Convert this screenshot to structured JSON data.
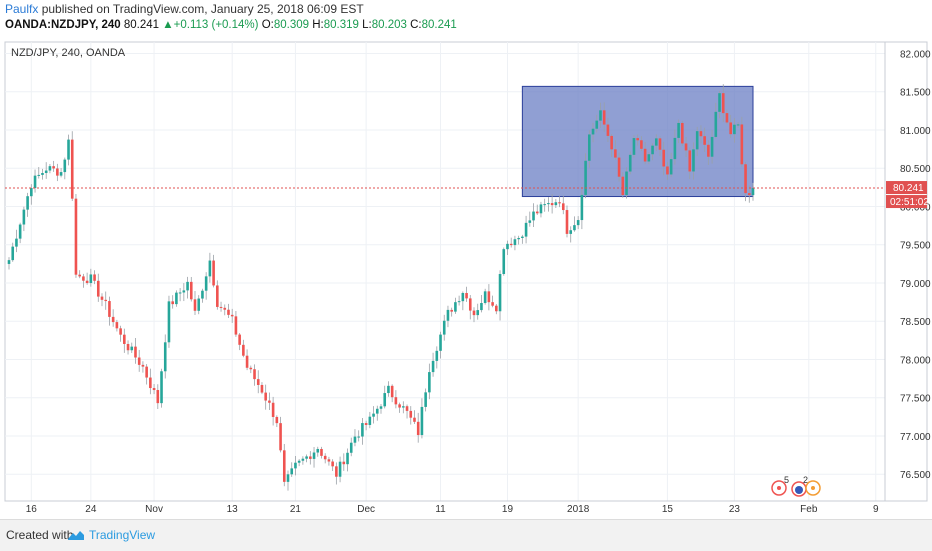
{
  "header": {
    "author": "Paulfx",
    "published": "published on TradingView.com, January 25, 2018 06:09 EST"
  },
  "quote": {
    "symbol": "OANDA:NZDJPY, 240",
    "last": "80.241",
    "change_arrow": "▲",
    "change": "+0.113 (+0.14%)",
    "o_label": "O:",
    "o": "80.309",
    "h_label": "H:",
    "h": "80.319",
    "l_label": "L:",
    "l": "80.203",
    "c_label": "C:",
    "c": "80.241"
  },
  "chart_title": "NZD/JPY, 240, OANDA",
  "price_label": "80.241",
  "countdown_label": "02:51:02",
  "footer": {
    "created_with": "Created with",
    "brand": "TradingView"
  },
  "colors": {
    "up": "#26a69a",
    "down": "#ef5350",
    "box_fill": "#6b7fc4",
    "box_stroke": "#2b3f9a",
    "price_line": "#e05050",
    "grid": "#eef1f5"
  },
  "chart_data": {
    "type": "candlestick",
    "symbol": "NZD/JPY",
    "timeframe": "240",
    "y_ticks": [
      82.0,
      81.5,
      81.0,
      80.5,
      80.0,
      79.5,
      79.0,
      78.5,
      78.0,
      77.5,
      77.0,
      76.5
    ],
    "y_tick_labels": [
      "82.000",
      "81.500",
      "81.000",
      "80.500",
      "80.000",
      "79.500",
      "79.000",
      "78.500",
      "78.000",
      "77.500",
      "77.000",
      "76.500"
    ],
    "ylim": [
      76.15,
      82.15
    ],
    "x_ticks": [
      "16",
      "24",
      "Nov",
      "13",
      "21",
      "Dec",
      "11",
      "19",
      "2018",
      "15",
      "23",
      "Feb",
      "9"
    ],
    "x_tick_index": [
      6,
      22,
      39,
      60,
      77,
      96,
      116,
      134,
      153,
      177,
      195,
      215,
      233
    ],
    "n_bars": 210,
    "price_path": [
      [
        0,
        79.3
      ],
      [
        6,
        80.3
      ],
      [
        10,
        80.5
      ],
      [
        14,
        80.45
      ],
      [
        16,
        80.85
      ],
      [
        17,
        80.15
      ],
      [
        18,
        79.1
      ],
      [
        22,
        79.05
      ],
      [
        26,
        78.7
      ],
      [
        30,
        78.3
      ],
      [
        36,
        77.9
      ],
      [
        40,
        77.45
      ],
      [
        43,
        78.7
      ],
      [
        48,
        79.0
      ],
      [
        50,
        78.6
      ],
      [
        54,
        79.3
      ],
      [
        56,
        78.75
      ],
      [
        60,
        78.5
      ],
      [
        64,
        77.9
      ],
      [
        68,
        77.6
      ],
      [
        72,
        77.2
      ],
      [
        74,
        76.35
      ],
      [
        77,
        76.6
      ],
      [
        83,
        76.85
      ],
      [
        88,
        76.5
      ],
      [
        93,
        77.0
      ],
      [
        97,
        77.2
      ],
      [
        102,
        77.6
      ],
      [
        107,
        77.3
      ],
      [
        110,
        77.05
      ],
      [
        113,
        77.9
      ],
      [
        118,
        78.6
      ],
      [
        122,
        78.9
      ],
      [
        125,
        78.6
      ],
      [
        128,
        78.85
      ],
      [
        131,
        78.7
      ],
      [
        133,
        79.5
      ],
      [
        137,
        79.6
      ],
      [
        141,
        79.9
      ],
      [
        144,
        80.0
      ],
      [
        148,
        80.1
      ],
      [
        150,
        79.7
      ],
      [
        153,
        79.85
      ],
      [
        156,
        80.95
      ],
      [
        159,
        81.2
      ],
      [
        162,
        80.8
      ],
      [
        165,
        80.15
      ],
      [
        168,
        80.9
      ],
      [
        171,
        80.6
      ],
      [
        174,
        80.85
      ],
      [
        177,
        80.35
      ],
      [
        180,
        81.1
      ],
      [
        183,
        80.45
      ],
      [
        185,
        81.0
      ],
      [
        188,
        80.65
      ],
      [
        191,
        81.45
      ],
      [
        194,
        80.95
      ],
      [
        196,
        81.05
      ],
      [
        198,
        80.15
      ],
      [
        200,
        80.241
      ]
    ],
    "last_price": 80.241,
    "highlight_box": {
      "from_index": 138,
      "to_index": 200,
      "price_low": 80.13,
      "price_high": 81.57
    }
  }
}
